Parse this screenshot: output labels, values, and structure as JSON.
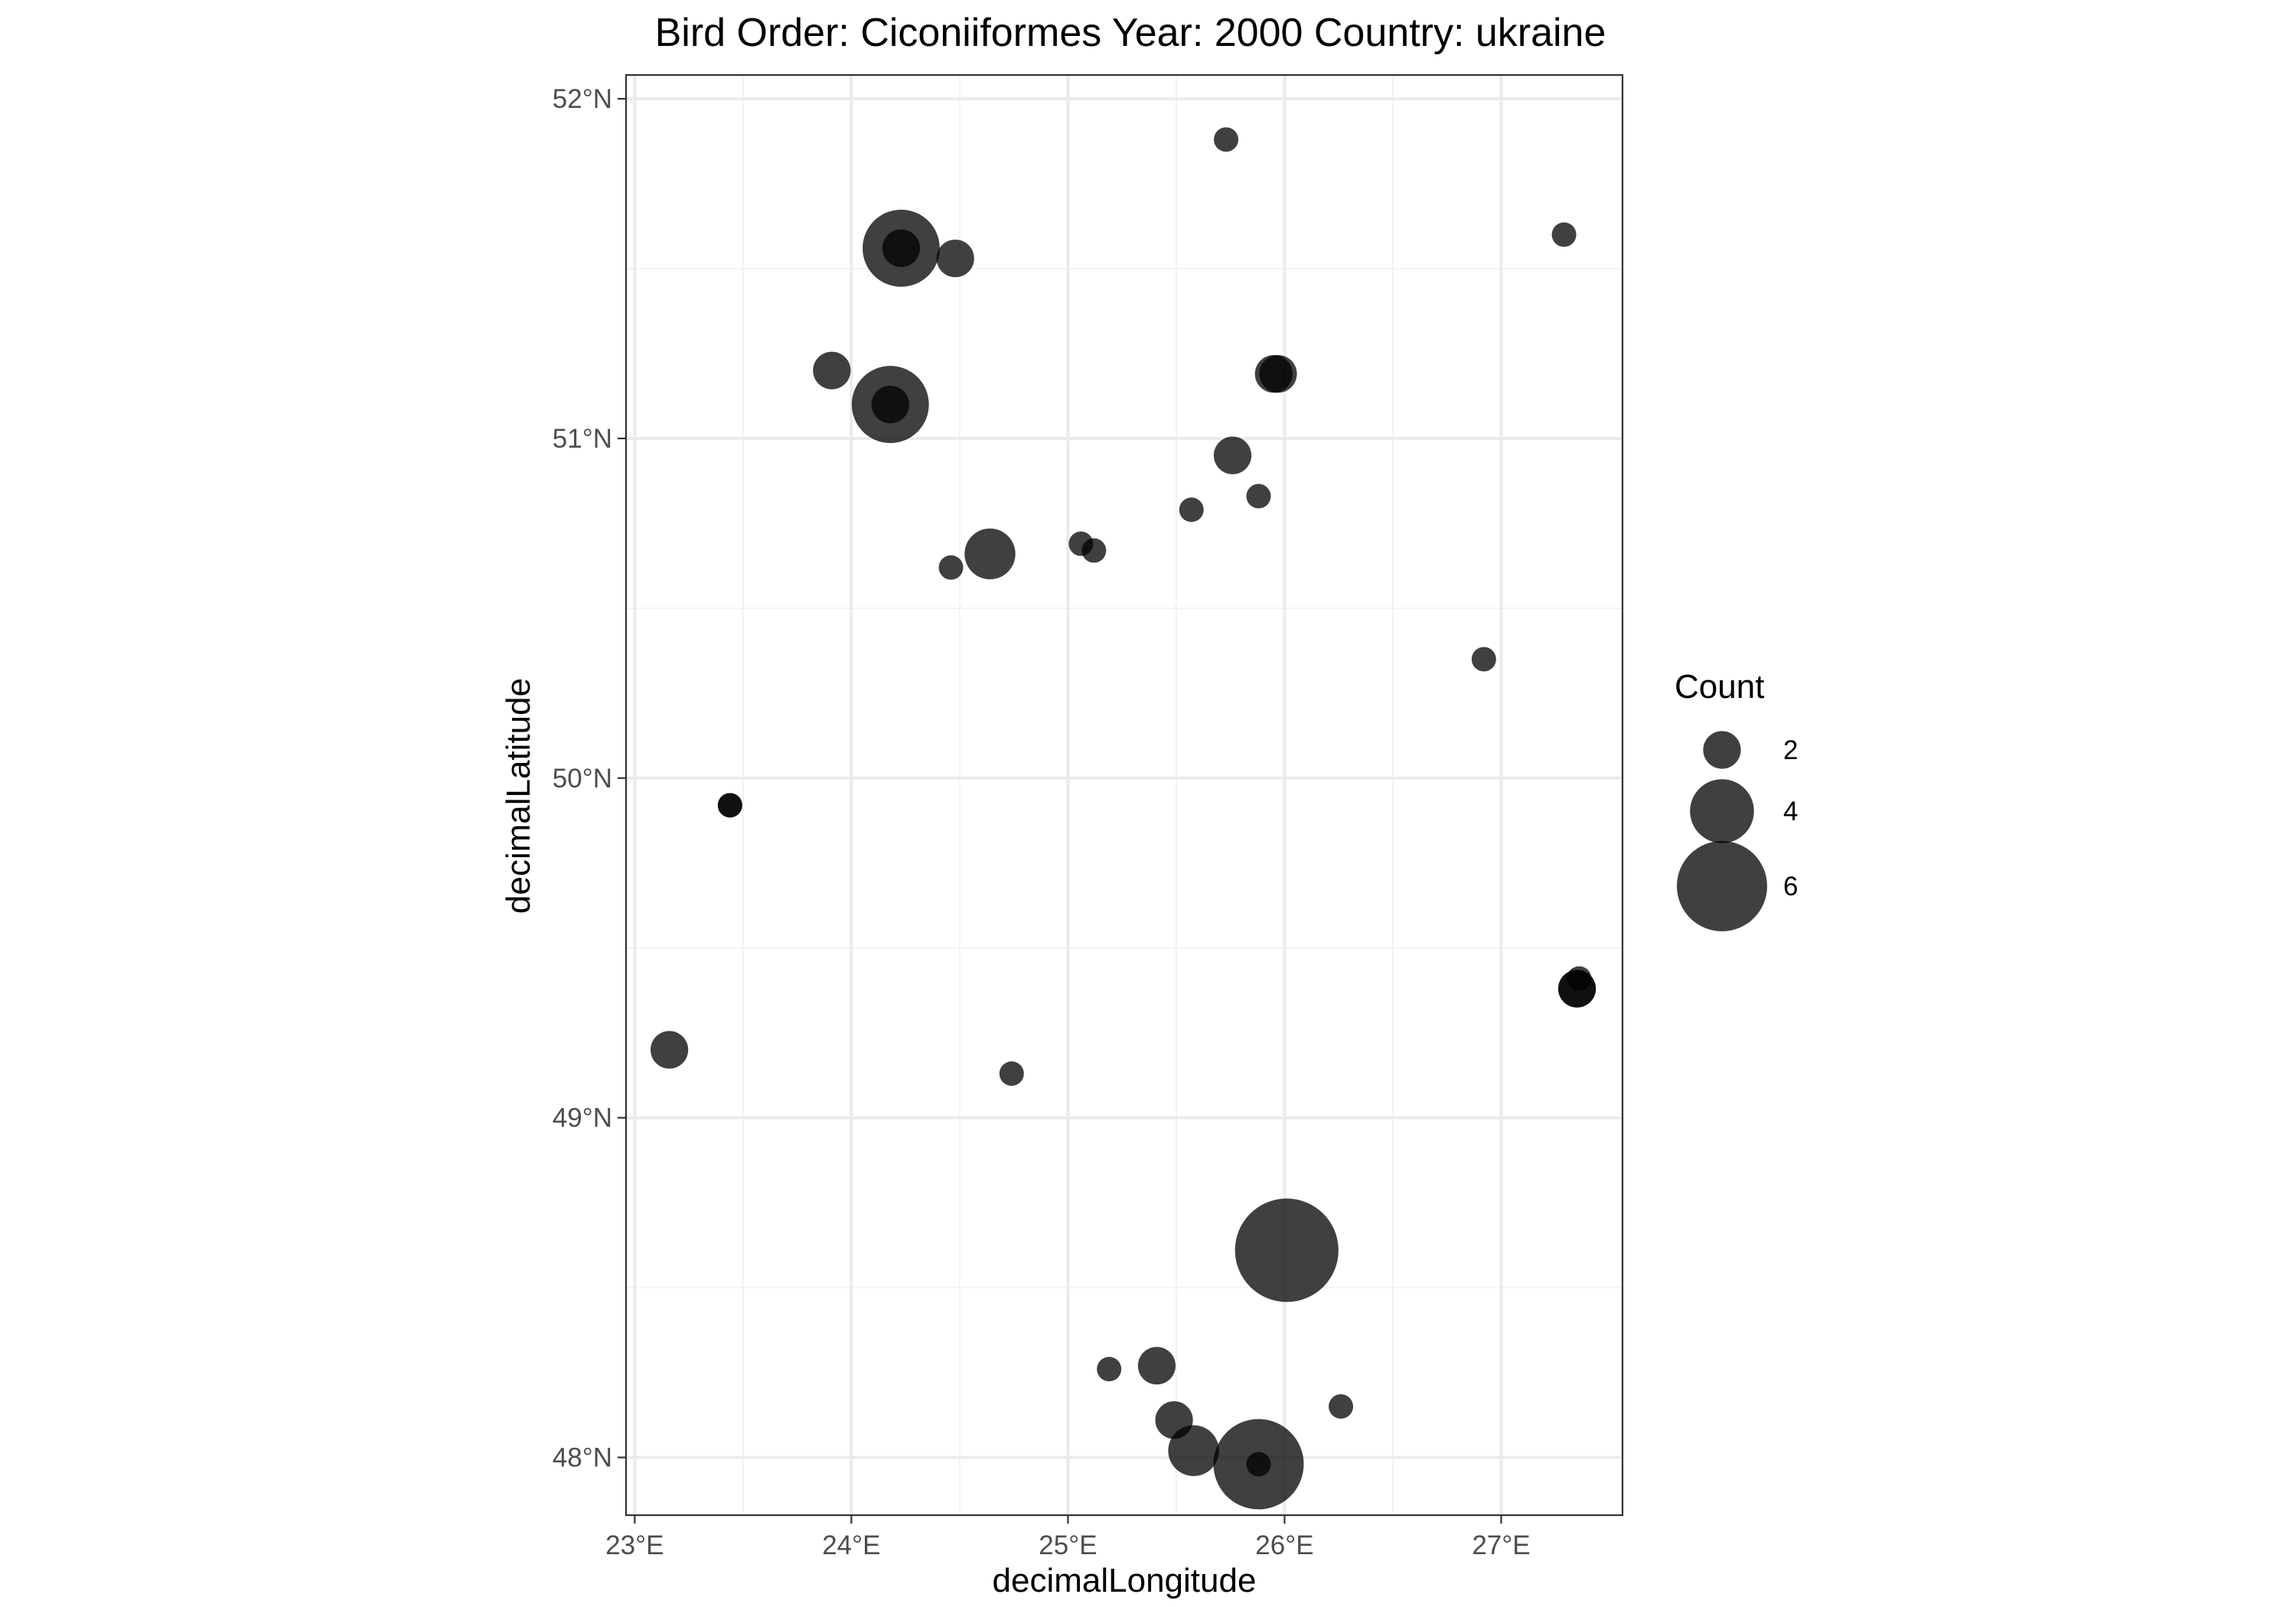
{
  "chart_data": {
    "type": "scatter",
    "title": "Bird Order: Ciconiiformes Year: 2000 Country: ukraine",
    "xlabel": "decimalLongitude",
    "ylabel": "decimalLatitude",
    "xlim": [
      22.96,
      27.56
    ],
    "ylim": [
      47.83,
      52.07
    ],
    "x_ticks": [
      23,
      24,
      25,
      26,
      27
    ],
    "x_tick_labels": [
      "23°E",
      "24°E",
      "25°E",
      "26°E",
      "27°E"
    ],
    "y_ticks": [
      48,
      49,
      50,
      51,
      52
    ],
    "y_tick_labels": [
      "48°N",
      "49°N",
      "50°N",
      "51°N",
      "52°N"
    ],
    "grid": true,
    "point_color": "#000000",
    "point_opacity": 0.75,
    "legend": {
      "title": "Count",
      "placement": "right",
      "entries": [
        {
          "label": "2",
          "value": 2
        },
        {
          "label": "4",
          "value": 4
        },
        {
          "label": "6",
          "value": 6
        }
      ]
    },
    "points": [
      {
        "x": 25.73,
        "y": 51.88,
        "count": 1
      },
      {
        "x": 24.23,
        "y": 51.56,
        "count": 5
      },
      {
        "x": 24.23,
        "y": 51.56,
        "count": 2
      },
      {
        "x": 24.48,
        "y": 51.53,
        "count": 2
      },
      {
        "x": 27.29,
        "y": 51.6,
        "count": 1
      },
      {
        "x": 23.91,
        "y": 51.2,
        "count": 2
      },
      {
        "x": 24.18,
        "y": 51.1,
        "count": 5
      },
      {
        "x": 24.18,
        "y": 51.1,
        "count": 2
      },
      {
        "x": 25.95,
        "y": 51.19,
        "count": 2
      },
      {
        "x": 25.97,
        "y": 51.19,
        "count": 2
      },
      {
        "x": 25.76,
        "y": 50.95,
        "count": 2
      },
      {
        "x": 25.88,
        "y": 50.83,
        "count": 1
      },
      {
        "x": 25.57,
        "y": 50.79,
        "count": 1
      },
      {
        "x": 24.64,
        "y": 50.66,
        "count": 3
      },
      {
        "x": 24.46,
        "y": 50.62,
        "count": 1
      },
      {
        "x": 25.06,
        "y": 50.69,
        "count": 1
      },
      {
        "x": 25.12,
        "y": 50.67,
        "count": 1
      },
      {
        "x": 26.92,
        "y": 50.35,
        "count": 1
      },
      {
        "x": 23.44,
        "y": 49.92,
        "count": 1
      },
      {
        "x": 23.44,
        "y": 49.92,
        "count": 1
      },
      {
        "x": 27.36,
        "y": 49.41,
        "count": 1
      },
      {
        "x": 27.35,
        "y": 49.38,
        "count": 2
      },
      {
        "x": 27.35,
        "y": 49.38,
        "count": 2
      },
      {
        "x": 23.16,
        "y": 49.2,
        "count": 2
      },
      {
        "x": 24.74,
        "y": 49.13,
        "count": 1
      },
      {
        "x": 26.01,
        "y": 48.61,
        "count": 7
      },
      {
        "x": 25.41,
        "y": 48.27,
        "count": 2
      },
      {
        "x": 25.19,
        "y": 48.26,
        "count": 1
      },
      {
        "x": 26.26,
        "y": 48.15,
        "count": 1
      },
      {
        "x": 25.49,
        "y": 48.11,
        "count": 2
      },
      {
        "x": 25.58,
        "y": 48.02,
        "count": 3
      },
      {
        "x": 25.88,
        "y": 47.98,
        "count": 6
      },
      {
        "x": 25.88,
        "y": 47.98,
        "count": 1
      }
    ]
  }
}
